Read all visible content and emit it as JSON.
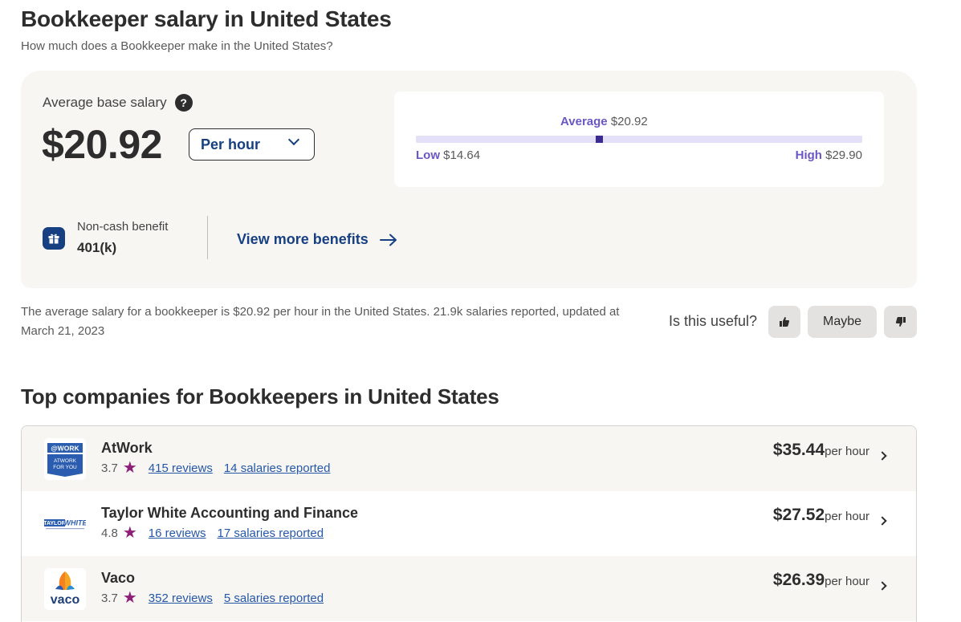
{
  "header": {
    "title": "Bookkeeper salary in United States",
    "subtitle": "How much does a Bookkeeper make in the United States?"
  },
  "salary": {
    "label": "Average base salary",
    "help_icon": "?",
    "value": "$20.92",
    "period_select": "Per hour",
    "range": {
      "average_label": "Average",
      "average_value": "$20.92",
      "low_label": "Low",
      "low_value": "$14.64",
      "high_label": "High",
      "high_value": "$29.90",
      "average_fraction": 0.411
    }
  },
  "benefits": {
    "icon": "gift-icon",
    "label": "Non-cash benefit",
    "value": "401(k)",
    "view_more": "View more benefits"
  },
  "summary": {
    "text": "The average salary for a bookkeeper is $20.92 per hour in the United States.  21.9k salaries reported, updated at March 21, 2023"
  },
  "feedback": {
    "question": "Is this useful?",
    "maybe": "Maybe",
    "up_icon": "thumbs-up-icon",
    "down_icon": "thumbs-down-icon"
  },
  "companies": {
    "title": "Top companies for Bookkeepers in United States",
    "items": [
      {
        "name": "AtWork",
        "rating": "3.7",
        "reviews": "415 reviews",
        "salaries": "14 salaries reported",
        "pay": "$35.44",
        "unit": "per hour"
      },
      {
        "name": "Taylor White Accounting and Finance",
        "rating": "4.8",
        "reviews": "16 reviews",
        "salaries": "17 salaries reported",
        "pay": "$27.52",
        "unit": "per hour"
      },
      {
        "name": "Vaco",
        "rating": "3.7",
        "reviews": "352 reviews",
        "salaries": "5 salaries reported",
        "pay": "$26.39",
        "unit": "per hour"
      }
    ]
  },
  "colors": {
    "brand_blue": "#164081",
    "range_purple": "#6b57c4",
    "star": "#8e1f78"
  }
}
